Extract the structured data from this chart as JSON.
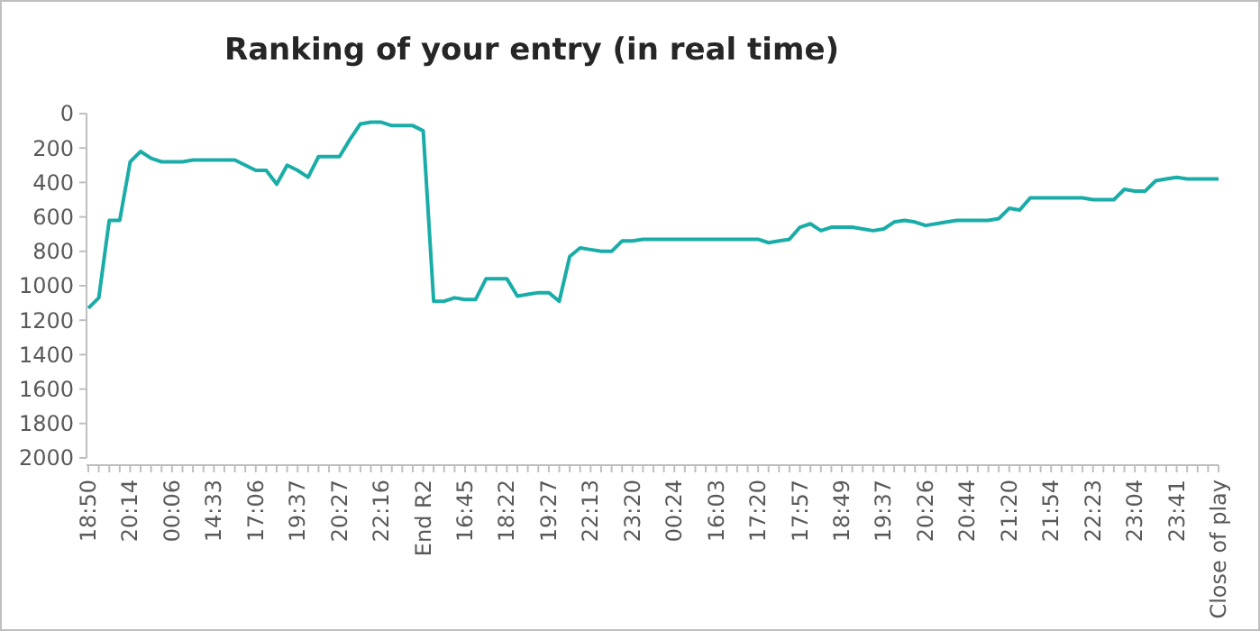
{
  "chart_data": {
    "type": "line",
    "title": "Ranking of your entry (in real time)",
    "categories": [
      "18:50",
      null,
      null,
      null,
      "20:14",
      null,
      null,
      null,
      "00:06",
      null,
      null,
      null,
      "14:33",
      null,
      null,
      null,
      "17:06",
      null,
      null,
      null,
      "19:37",
      null,
      null,
      null,
      "20:27",
      null,
      null,
      null,
      "22:16",
      null,
      null,
      null,
      "End R2",
      null,
      null,
      null,
      "16:45",
      null,
      null,
      null,
      "18:22",
      null,
      null,
      null,
      "19:27",
      null,
      null,
      null,
      "22:13",
      null,
      null,
      null,
      "23:20",
      null,
      null,
      null,
      "00:24",
      null,
      null,
      null,
      "16:03",
      null,
      null,
      null,
      "17:20",
      null,
      null,
      null,
      "17:57",
      null,
      null,
      null,
      "18:49",
      null,
      null,
      null,
      "19:37",
      null,
      null,
      null,
      "20:26",
      null,
      null,
      null,
      "20:44",
      null,
      null,
      null,
      "21:20",
      null,
      null,
      null,
      "21:54",
      null,
      null,
      null,
      "22:23",
      null,
      null,
      null,
      "23:04",
      null,
      null,
      null,
      "23:41",
      null,
      null,
      null,
      "Close of play"
    ],
    "series": [
      {
        "color": "#1aada8",
        "values": [
          1130,
          1070,
          620,
          620,
          280,
          220,
          260,
          280,
          280,
          280,
          270,
          270,
          270,
          270,
          270,
          300,
          330,
          330,
          410,
          300,
          330,
          370,
          250,
          250,
          250,
          150,
          60,
          50,
          50,
          70,
          70,
          70,
          100,
          1090,
          1090,
          1070,
          1080,
          1080,
          960,
          960,
          960,
          1060,
          1050,
          1040,
          1040,
          1090,
          830,
          780,
          790,
          800,
          800,
          740,
          740,
          730,
          730,
          730,
          730,
          730,
          730,
          730,
          730,
          730,
          730,
          730,
          730,
          750,
          740,
          730,
          660,
          640,
          680,
          660,
          660,
          660,
          670,
          680,
          670,
          630,
          620,
          630,
          650,
          640,
          630,
          620,
          620,
          620,
          620,
          610,
          550,
          560,
          490,
          490,
          490,
          490,
          490,
          490,
          500,
          500,
          500,
          440,
          450,
          450,
          390,
          380,
          370,
          380,
          380,
          380,
          380
        ]
      }
    ],
    "ylim": [
      2000,
      0
    ],
    "yticks": [
      0,
      200,
      400,
      600,
      800,
      1000,
      1200,
      1400,
      1600,
      1800,
      2000
    ],
    "grid": false,
    "marker": "none",
    "line_style": "solid"
  }
}
